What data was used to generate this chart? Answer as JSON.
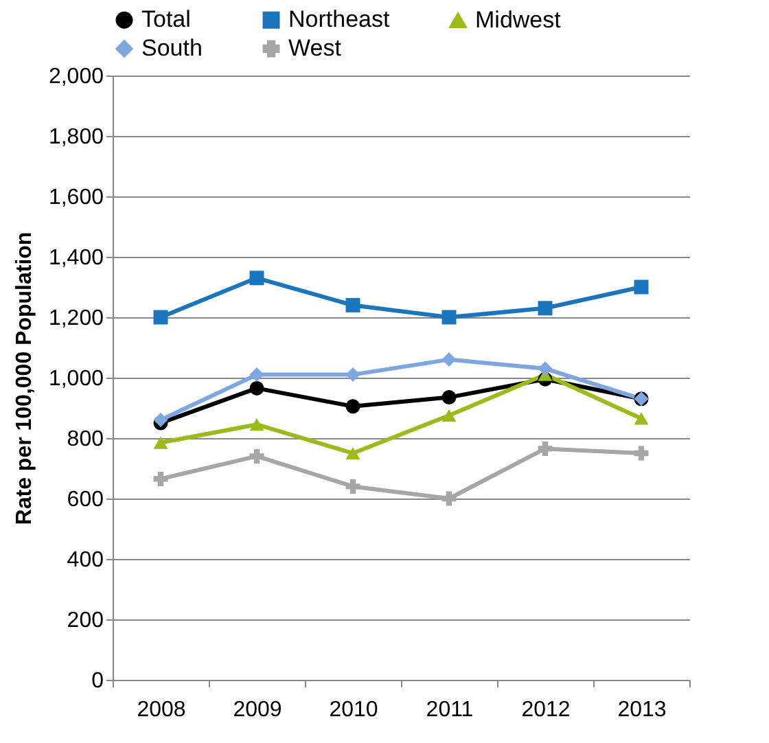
{
  "chart_data": {
    "type": "line",
    "ylabel": "Rate per 100,000 Population",
    "categories": [
      "2008",
      "2009",
      "2010",
      "2011",
      "2012",
      "2013"
    ],
    "series": [
      {
        "name": "Total",
        "color": "#000000",
        "marker": "circle",
        "values": [
          850,
          965,
          905,
          935,
          995,
          930
        ]
      },
      {
        "name": "Northeast",
        "color": "#1b75bc",
        "marker": "square",
        "values": [
          1200,
          1330,
          1240,
          1200,
          1230,
          1300
        ]
      },
      {
        "name": "Midwest",
        "color": "#9bbb1c",
        "marker": "triangle",
        "values": [
          785,
          845,
          750,
          875,
          1010,
          865
        ]
      },
      {
        "name": "South",
        "color": "#7ea6e0",
        "marker": "diamond",
        "values": [
          860,
          1010,
          1010,
          1060,
          1030,
          930
        ]
      },
      {
        "name": "West",
        "color": "#a6a6a6",
        "marker": "cross",
        "values": [
          665,
          740,
          640,
          600,
          765,
          750
        ]
      }
    ],
    "ylim": [
      0,
      2000
    ],
    "yticks": [
      0,
      200,
      400,
      {
        "value": 600,
        "label": "600"
      },
      800,
      {
        "value": 1000,
        "label": "1,000"
      },
      {
        "value": 1200,
        "label": "1,200"
      },
      {
        "value": 1400,
        "label": "1,400"
      },
      {
        "value": 1600,
        "label": "1,600"
      },
      {
        "value": 1800,
        "label": "1,800"
      },
      {
        "value": 2000,
        "label": "2,000"
      }
    ],
    "grid": "y",
    "legend": "top"
  }
}
